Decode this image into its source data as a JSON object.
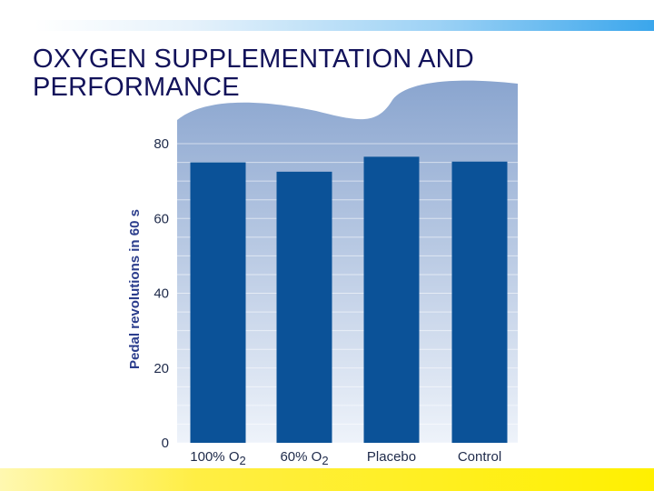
{
  "slide": {
    "title_line1": "OXYGEN SUPPLEMENTATION AND",
    "title_line2": "PERFORMANCE"
  },
  "colors": {
    "bar": "#0b5298",
    "plot_top": "#8aa5cf",
    "plot_bottom": "#eef3fa",
    "title": "#12125a"
  },
  "chart_data": {
    "type": "bar",
    "title": "",
    "xlabel": "",
    "ylabel": "Pedal revolutions in 60 s",
    "categories": [
      {
        "main": "100% O",
        "sub": "2"
      },
      {
        "main": "60% O",
        "sub": "2"
      },
      {
        "main": "Placebo",
        "sub": ""
      },
      {
        "main": "Control",
        "sub": ""
      }
    ],
    "values": [
      75,
      72.5,
      76.5,
      75.2
    ],
    "ylim": [
      0,
      80
    ],
    "yticks": [
      0,
      20,
      40,
      60,
      80
    ],
    "grid": true,
    "legend": "none"
  }
}
